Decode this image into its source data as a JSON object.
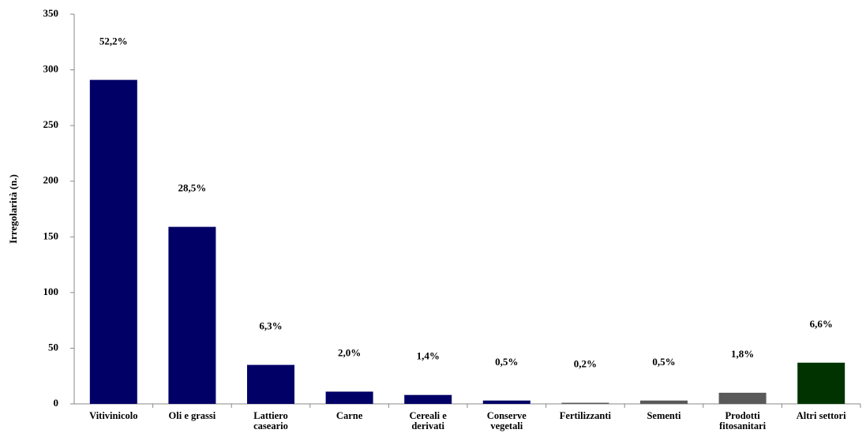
{
  "chart_data": {
    "type": "bar",
    "y_label": "Irregolarità (n.)",
    "categories": [
      "Vitivinicolo",
      "Oli e grassi",
      "Lattiero caseario",
      "Carne",
      "Cereali e derivati",
      "Conserve vegetali",
      "Fertilizzanti",
      "Sementi",
      "Prodotti fitosanitari",
      "Altri settori"
    ],
    "values": [
      291,
      159,
      35,
      11,
      8,
      3,
      1,
      3,
      10,
      37
    ],
    "share_labels": [
      "52,2%",
      "28,5%",
      "6,3%",
      "2,0%",
      "1,4%",
      "0,5%",
      "0,2%",
      "0,5%",
      "1,8%",
      "6,6%"
    ],
    "colors": [
      "#000066",
      "#000066",
      "#000066",
      "#000066",
      "#000066",
      "#000066",
      "#595959",
      "#595959",
      "#595959",
      "#003300"
    ],
    "ylim": [
      0,
      350
    ],
    "yticks": [
      0,
      50,
      100,
      150,
      200,
      250,
      300,
      350
    ],
    "grid": false
  }
}
